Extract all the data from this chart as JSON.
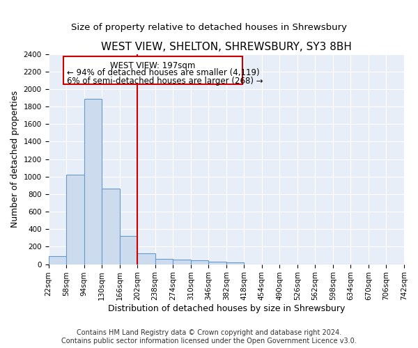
{
  "title": "WEST VIEW, SHELTON, SHREWSBURY, SY3 8BH",
  "subtitle": "Size of property relative to detached houses in Shrewsbury",
  "xlabel": "Distribution of detached houses by size in Shrewsbury",
  "ylabel": "Number of detached properties",
  "bin_edges": [
    22,
    58,
    94,
    130,
    166,
    202,
    238,
    274,
    310,
    346,
    382,
    418,
    454,
    490,
    526,
    562,
    598,
    634,
    670,
    706,
    742
  ],
  "bar_heights": [
    90,
    1020,
    1890,
    860,
    320,
    120,
    60,
    55,
    45,
    30,
    20,
    0,
    0,
    0,
    0,
    0,
    0,
    0,
    0,
    0
  ],
  "bar_color": "#ccdcee",
  "bar_edge_color": "#6699cc",
  "reference_line_x": 202,
  "reference_line_color": "#cc0000",
  "annotation_line1": "WEST VIEW: 197sqm",
  "annotation_line2": "← 94% of detached houses are smaller (4,119)",
  "annotation_line3": "6% of semi-detached houses are larger (268) →",
  "annotation_box_color": "#cc0000",
  "ylim": [
    0,
    2400
  ],
  "yticks": [
    0,
    200,
    400,
    600,
    800,
    1000,
    1200,
    1400,
    1600,
    1800,
    2000,
    2200,
    2400
  ],
  "background_color": "#e8eef8",
  "grid_color": "#ffffff",
  "footer_text": "Contains HM Land Registry data © Crown copyright and database right 2024.\nContains public sector information licensed under the Open Government Licence v3.0.",
  "title_fontsize": 11,
  "subtitle_fontsize": 9.5,
  "axis_label_fontsize": 9,
  "tick_fontsize": 7.5,
  "annotation_fontsize": 8.5,
  "footer_fontsize": 7
}
